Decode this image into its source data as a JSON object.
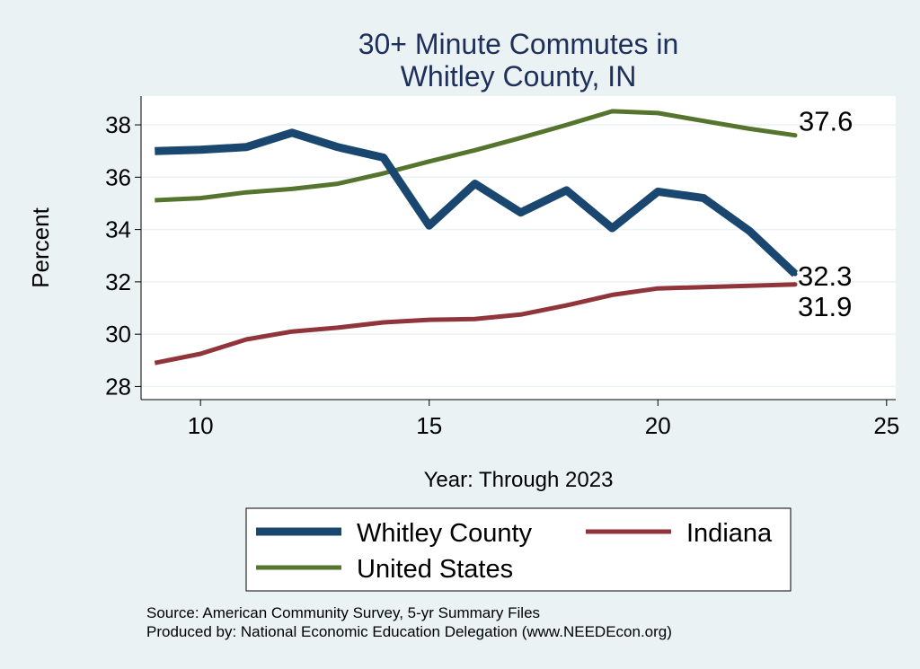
{
  "chart_data": {
    "type": "line",
    "title_line1": "30+ Minute Commutes in",
    "title_line2": "Whitley County, IN",
    "xlabel": "Year: Through 2023",
    "ylabel": "Percent",
    "xlim": [
      8.7,
      25.2
    ],
    "ylim": [
      27.5,
      39.1
    ],
    "xticks": [
      10,
      15,
      20,
      25
    ],
    "yticks": [
      28,
      30,
      32,
      34,
      36,
      38
    ],
    "grid": true,
    "x": [
      9,
      10,
      11,
      12,
      13,
      14,
      15,
      16,
      17,
      18,
      19,
      20,
      21,
      22,
      23
    ],
    "series": [
      {
        "name": "Whitley County",
        "color": "#1a476f",
        "values": [
          37.0,
          37.05,
          37.15,
          37.7,
          37.15,
          36.75,
          34.15,
          35.75,
          34.65,
          35.5,
          34.05,
          35.45,
          35.2,
          33.95,
          32.3
        ],
        "end_label": "32.3"
      },
      {
        "name": "Indiana",
        "color": "#90353b",
        "values": [
          28.9,
          29.25,
          29.8,
          30.1,
          30.25,
          30.45,
          30.55,
          30.58,
          30.75,
          31.1,
          31.5,
          31.75,
          31.8,
          31.85,
          31.9
        ],
        "end_label": "31.9"
      },
      {
        "name": "United States",
        "color": "#55752f",
        "values": [
          35.12,
          35.2,
          35.42,
          35.55,
          35.75,
          36.15,
          36.6,
          37.03,
          37.5,
          38.0,
          38.52,
          38.45,
          38.15,
          37.85,
          37.6
        ],
        "end_label": "37.6"
      }
    ],
    "legend": [
      "Whitley County",
      "Indiana",
      "United States"
    ],
    "legend_position": "bottom"
  },
  "notes": {
    "source": "Source: American Community Survey, 5-yr Summary Files",
    "producer": "Produced by: National Economic Education Delegation (www.NEEDEcon.org)"
  }
}
